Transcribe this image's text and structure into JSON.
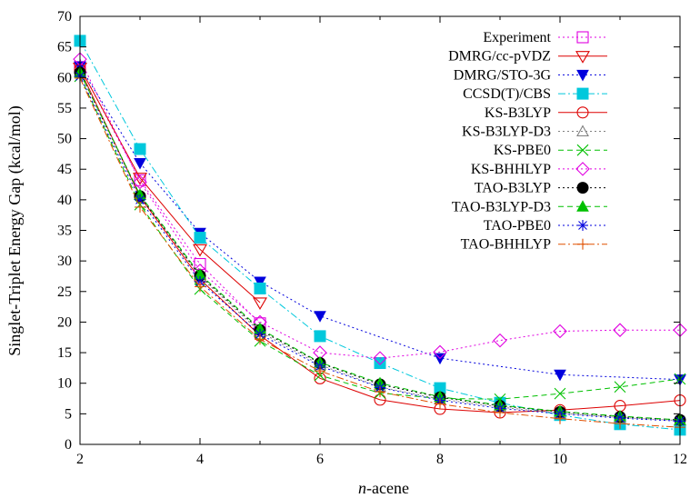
{
  "chart_data": {
    "type": "line",
    "xlabel_italic": "n",
    "xlabel_rest": "-acene",
    "ylabel": "Singlet-Triplet Energy Gap (kcal/mol)",
    "xlim": [
      2,
      12
    ],
    "ylim": [
      0,
      70
    ],
    "x_ticks": [
      2,
      4,
      6,
      8,
      10,
      12
    ],
    "y_ticks": [
      0,
      5,
      10,
      15,
      20,
      25,
      30,
      35,
      40,
      45,
      50,
      55,
      60,
      65,
      70
    ],
    "grid": false,
    "legend_position": "top-right",
    "series": [
      {
        "name": "Experiment",
        "color": "#e000e0",
        "dash": "2,3",
        "marker": "square-open",
        "x": [
          2,
          3,
          4,
          5
        ],
        "y": [
          61.7,
          43.2,
          29.5,
          19.8
        ]
      },
      {
        "name": "DMRG/cc-pVDZ",
        "color": "#dd0000",
        "dash": "",
        "marker": "triangle-down-open",
        "x": [
          2,
          3,
          4,
          5
        ],
        "y": [
          61.6,
          43.6,
          31.9,
          23.2
        ]
      },
      {
        "name": "DMRG/STO-3G",
        "color": "#0000dd",
        "dash": "2,3",
        "marker": "triangle-down-filled",
        "x": [
          2,
          3,
          4,
          5,
          6,
          8,
          10,
          12
        ],
        "y": [
          61.8,
          46.0,
          34.6,
          26.6,
          21.0,
          14.1,
          11.4,
          10.6
        ]
      },
      {
        "name": "CCSD(T)/CBS",
        "color": "#00c8dc",
        "dash": "8,3,2,3",
        "marker": "square-filled",
        "x": [
          2,
          3,
          4,
          5,
          6,
          7,
          8,
          9,
          10,
          11,
          12
        ],
        "y": [
          66.0,
          48.3,
          33.8,
          25.5,
          17.7,
          13.3,
          9.2,
          6.8,
          4.8,
          3.3,
          2.4
        ]
      },
      {
        "name": "KS-B3LYP",
        "color": "#dd0000",
        "dash": "",
        "marker": "circle-open",
        "x": [
          2,
          3,
          4,
          5,
          6,
          7,
          8,
          9,
          10,
          11,
          12
        ],
        "y": [
          61.3,
          40.5,
          27.0,
          17.8,
          10.8,
          7.3,
          5.8,
          5.2,
          5.6,
          6.3,
          7.2
        ]
      },
      {
        "name": "KS-B3LYP-D3",
        "color": "#808080",
        "dash": "2,3",
        "marker": "triangle-up-open",
        "x": [
          2,
          3,
          4,
          5,
          6,
          7,
          8,
          9,
          10,
          11,
          12
        ],
        "y": [
          61.0,
          40.8,
          27.4,
          18.4,
          13.0,
          9.4,
          7.4,
          6.1,
          5.1,
          4.4,
          3.9
        ]
      },
      {
        "name": "KS-PBE0",
        "color": "#00c000",
        "dash": "6,4",
        "marker": "x",
        "x": [
          2,
          3,
          4,
          5,
          6,
          7,
          8,
          9,
          10,
          11,
          12
        ],
        "y": [
          60.2,
          39.2,
          25.4,
          16.9,
          11.3,
          8.4,
          7.5,
          7.4,
          8.3,
          9.4,
          10.7
        ]
      },
      {
        "name": "KS-BHHLYP",
        "color": "#e000e0",
        "dash": "2,3",
        "marker": "diamond-open",
        "x": [
          2,
          3,
          4,
          5,
          6,
          7,
          8,
          9,
          10,
          11,
          12
        ],
        "y": [
          63.0,
          42.9,
          28.4,
          20.0,
          15.0,
          14.1,
          15.1,
          17.0,
          18.5,
          18.7,
          18.7
        ]
      },
      {
        "name": "TAO-B3LYP",
        "color": "#000000",
        "dash": "2,3",
        "marker": "circle-filled",
        "x": [
          2,
          3,
          4,
          5,
          6,
          7,
          8,
          9,
          10,
          11,
          12
        ],
        "y": [
          60.8,
          40.6,
          27.6,
          18.7,
          13.3,
          9.8,
          7.7,
          6.3,
          5.3,
          4.5,
          4.0
        ]
      },
      {
        "name": "TAO-B3LYP-D3",
        "color": "#00c000",
        "dash": "6,4",
        "marker": "triangle-up-filled",
        "x": [
          2,
          3,
          4,
          5,
          6,
          7,
          8,
          9,
          10,
          11,
          12
        ],
        "y": [
          60.8,
          40.8,
          27.8,
          18.9,
          13.4,
          10.0,
          7.8,
          6.4,
          5.4,
          4.6,
          4.0
        ]
      },
      {
        "name": "TAO-PBE0",
        "color": "#0000dd",
        "dash": "2,3",
        "marker": "asterisk",
        "x": [
          2,
          3,
          4,
          5,
          6,
          7,
          8,
          9,
          10,
          11,
          12
        ],
        "y": [
          60.2,
          40.0,
          26.6,
          18.0,
          12.8,
          9.3,
          7.2,
          5.9,
          5.0,
          4.3,
          3.8
        ]
      },
      {
        "name": "TAO-BHHLYP",
        "color": "#e05000",
        "dash": "8,3,2,3",
        "marker": "plus",
        "x": [
          2,
          3,
          4,
          5,
          6,
          7,
          8,
          9,
          10,
          11,
          12
        ],
        "y": [
          59.9,
          38.8,
          25.8,
          17.2,
          12.0,
          8.6,
          6.6,
          5.2,
          4.2,
          3.4,
          2.8
        ]
      }
    ]
  }
}
